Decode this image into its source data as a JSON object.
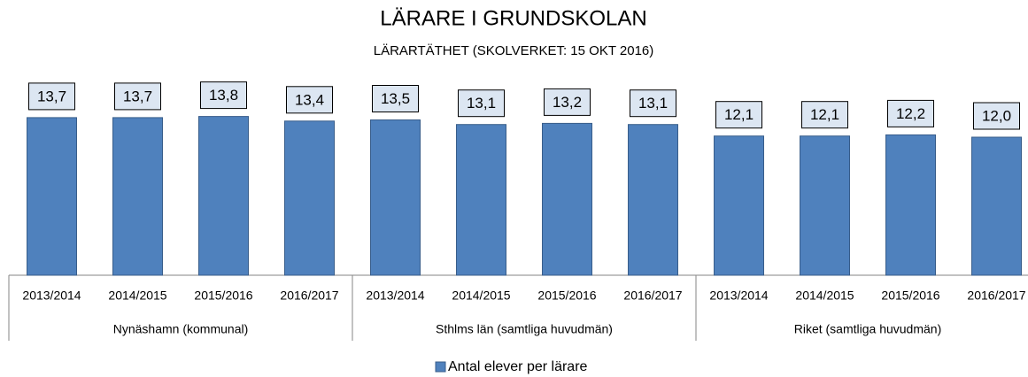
{
  "chart_data": {
    "type": "bar",
    "title": "LÄRARE I GRUNDSKOLAN",
    "subtitle": "LÄRARTÄTHET (SKOLVERKET: 15 OKT 2016)",
    "categories": [
      "2013/2014",
      "2014/2015",
      "2015/2016",
      "2016/2017",
      "2013/2014",
      "2014/2015",
      "2015/2016",
      "2016/2017",
      "2013/2014",
      "2014/2015",
      "2015/2016",
      "2016/2017"
    ],
    "groups": [
      "Nynäshamn (kommunal)",
      "Sthlms län (samtliga huvudmän)",
      "Riket (samtliga huvudmän)"
    ],
    "series": [
      {
        "name": "Antal elever per lärare",
        "color": "#4f81bd",
        "values": [
          13.7,
          13.7,
          13.8,
          13.4,
          13.5,
          13.1,
          13.2,
          13.1,
          12.1,
          12.1,
          12.2,
          12.0
        ],
        "value_labels": [
          "13,7",
          "13,7",
          "13,8",
          "13,4",
          "13,5",
          "13,1",
          "13,2",
          "13,1",
          "12,1",
          "12,1",
          "12,2",
          "12,0"
        ]
      }
    ],
    "ylim": [
      0,
      16
    ],
    "legend": "bottom"
  }
}
